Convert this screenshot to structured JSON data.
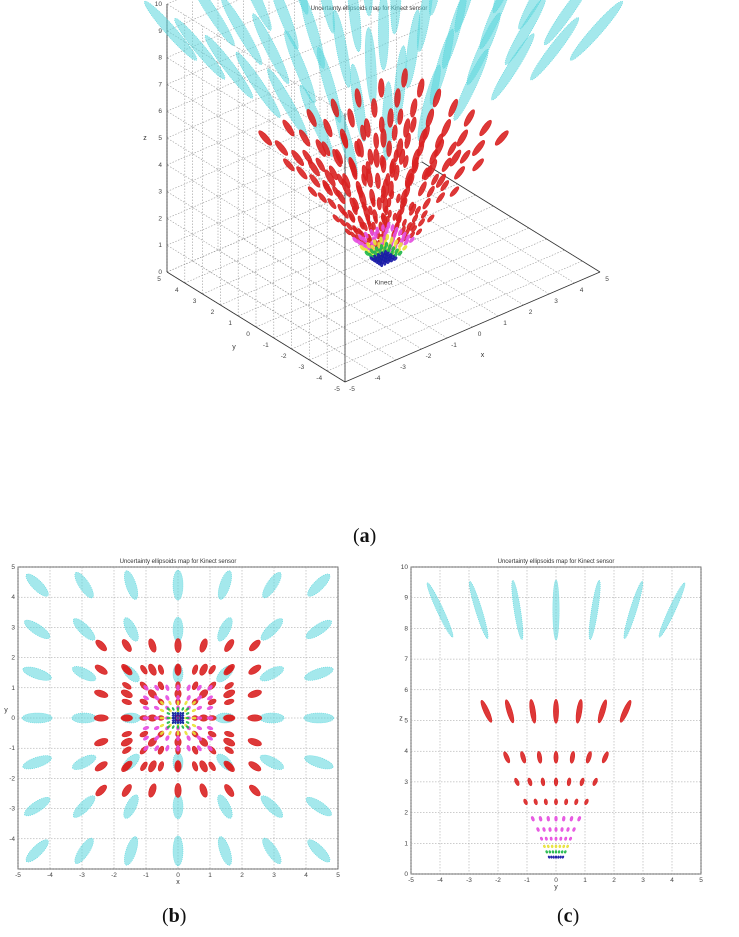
{
  "chart_data": [
    {
      "id": "a",
      "type": "scatter",
      "view": "3d",
      "title": "Uncertainty ellipsoids map for Kinect sensor",
      "xlabel": "x",
      "ylabel": "y",
      "zlabel": "z",
      "xlim": [
        -5,
        5
      ],
      "ylim": [
        -5,
        5
      ],
      "zlim": [
        0,
        10
      ],
      "xticks": [
        "-5",
        "-4",
        "-3",
        "-2",
        "-1",
        "0",
        "1",
        "2",
        "3",
        "4",
        "5"
      ],
      "yticks": [
        "-5",
        "-4",
        "-3",
        "-2",
        "-1",
        "0",
        "1",
        "2",
        "3",
        "4",
        "5"
      ],
      "zticks": [
        "0",
        "1",
        "2",
        "3",
        "4",
        "5",
        "6",
        "7",
        "8",
        "9",
        "10"
      ],
      "origin_label": "Kinect",
      "grid": true,
      "depth_layers": [
        {
          "z": 0.5,
          "color": "#1a1aa8",
          "count": 5
        },
        {
          "z": 0.7,
          "color": "#21b84a",
          "count": 5
        },
        {
          "z": 0.9,
          "color": "#e8e23a",
          "count": 5
        },
        {
          "z": 1.2,
          "color": "#e64ee0",
          "count": 7
        },
        {
          "z": 1.5,
          "color": "#d92222",
          "count": 7
        },
        {
          "z": 2.0,
          "color": "#d92222",
          "count": 7
        },
        {
          "z": 3.0,
          "color": "#d92222",
          "count": 7
        },
        {
          "z": 4.0,
          "color": "#d92222",
          "count": 7
        },
        {
          "z": 5.0,
          "color": "#d92222",
          "count": 7
        },
        {
          "z": 9.0,
          "color": "#5ad6dc",
          "count": 7
        }
      ]
    },
    {
      "id": "b",
      "type": "scatter",
      "view": "top",
      "title": "Uncertainty ellipsoids map for Kinect sensor",
      "xlabel": "x",
      "ylabel": "y",
      "xlim": [
        -5,
        5
      ],
      "ylim": [
        -5,
        5
      ],
      "xticks": [
        "-5",
        "-4",
        "-3",
        "-2",
        "-1",
        "0",
        "1",
        "2",
        "3",
        "4",
        "5"
      ],
      "yticks": [
        "-4",
        "-3",
        "-2",
        "-1",
        "0",
        "1",
        "2",
        "3",
        "4",
        "5"
      ],
      "grid": true
    },
    {
      "id": "c",
      "type": "scatter",
      "view": "side",
      "title": "Uncertainty ellipsoids map for Kinect sensor",
      "xlabel": "y",
      "ylabel": "z",
      "xlim": [
        -5,
        5
      ],
      "ylim": [
        0,
        10
      ],
      "xticks": [
        "-5",
        "-4",
        "-3",
        "-2",
        "-1",
        "0",
        "1",
        "2",
        "3",
        "4",
        "5"
      ],
      "yticks": [
        "0",
        "1",
        "2",
        "3",
        "4",
        "5",
        "6",
        "7",
        "8",
        "9",
        "10"
      ],
      "grid": true
    }
  ],
  "captions": {
    "a": "a",
    "b": "b",
    "c": "c"
  }
}
